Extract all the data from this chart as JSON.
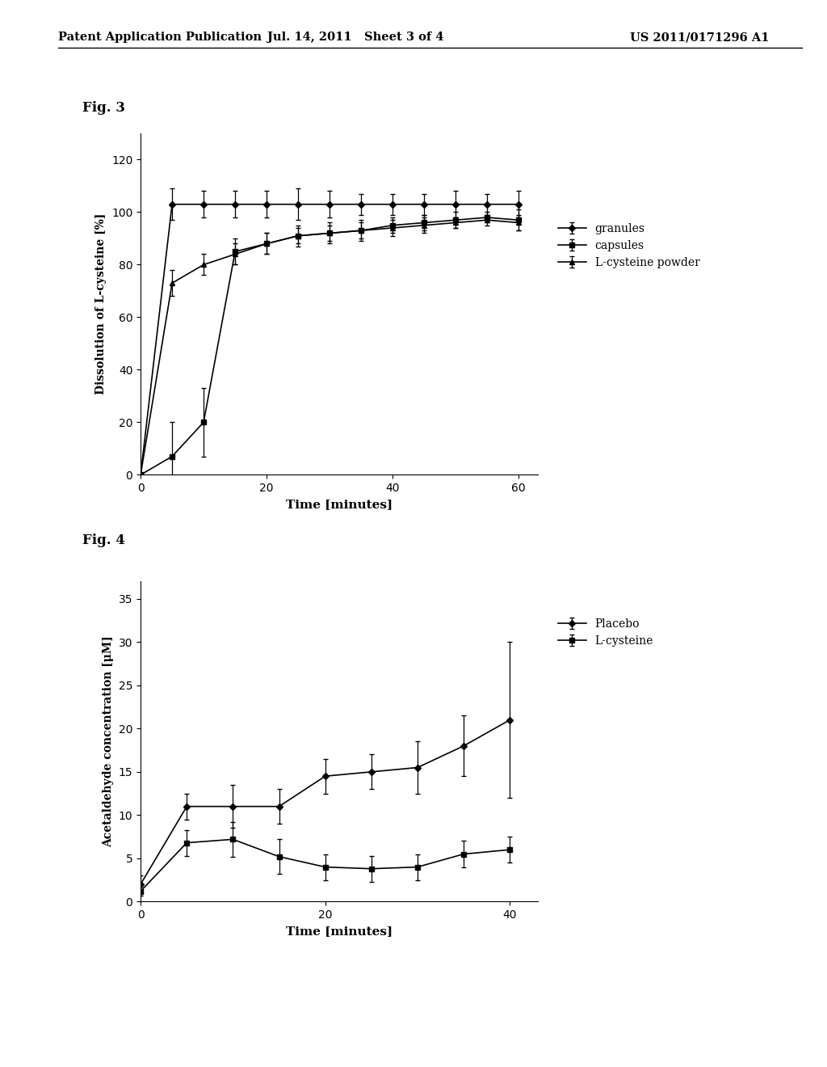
{
  "header_left": "Patent Application Publication",
  "header_mid": "Jul. 14, 2011   Sheet 3 of 4",
  "header_right": "US 2011/0171296 A1",
  "fig3": {
    "title": "Fig. 3",
    "xlabel": "Time [minutes]",
    "ylabel": "Dissolution of L-cysteine [%]",
    "xlim": [
      0,
      63
    ],
    "ylim": [
      0,
      130
    ],
    "xticks": [
      0,
      20,
      40,
      60
    ],
    "yticks": [
      0,
      20,
      40,
      60,
      80,
      100,
      120
    ],
    "granules": {
      "x": [
        0,
        5,
        10,
        15,
        20,
        25,
        30,
        35,
        40,
        45,
        50,
        55,
        60
      ],
      "y": [
        0,
        103,
        103,
        103,
        103,
        103,
        103,
        103,
        103,
        103,
        103,
        103,
        103
      ],
      "yerr": [
        0,
        6,
        5,
        5,
        5,
        6,
        5,
        4,
        4,
        4,
        5,
        4,
        5
      ],
      "label": "granules",
      "marker": "D",
      "color": "#000000"
    },
    "capsules": {
      "x": [
        0,
        5,
        10,
        15,
        20,
        25,
        30,
        35,
        40,
        45,
        50,
        55,
        60
      ],
      "y": [
        0,
        7,
        20,
        85,
        88,
        91,
        92,
        93,
        95,
        96,
        97,
        98,
        97
      ],
      "yerr": [
        0,
        13,
        13,
        5,
        4,
        4,
        4,
        4,
        3,
        3,
        3,
        2,
        4
      ],
      "label": "capsules",
      "marker": "s",
      "color": "#000000"
    },
    "powder": {
      "x": [
        0,
        5,
        10,
        15,
        20,
        25,
        30,
        35,
        40,
        45,
        50,
        55,
        60
      ],
      "y": [
        0,
        73,
        80,
        84,
        88,
        91,
        92,
        93,
        94,
        95,
        96,
        97,
        96
      ],
      "yerr": [
        0,
        5,
        4,
        4,
        4,
        3,
        3,
        3,
        3,
        3,
        2,
        2,
        3
      ],
      "label": "L-cysteine powder",
      "marker": "^",
      "color": "#000000"
    }
  },
  "fig4": {
    "title": "Fig. 4",
    "xlabel": "Time [minutes]",
    "ylabel": "Acetaldehyde concentration [μM]",
    "xlim": [
      0,
      43
    ],
    "ylim": [
      0,
      37
    ],
    "xticks": [
      0,
      20,
      40
    ],
    "yticks": [
      0,
      5,
      10,
      15,
      20,
      25,
      30,
      35
    ],
    "placebo": {
      "x": [
        0,
        5,
        10,
        15,
        20,
        25,
        30,
        35,
        40
      ],
      "y": [
        2.0,
        11.0,
        11.0,
        11.0,
        14.5,
        15.0,
        15.5,
        18.0,
        21.0
      ],
      "yerr": [
        1.0,
        1.5,
        2.5,
        2.0,
        2.0,
        2.0,
        3.0,
        3.5,
        9.0
      ],
      "label": "Placebo",
      "marker": "D",
      "color": "#000000"
    },
    "lcysteine": {
      "x": [
        0,
        5,
        10,
        15,
        20,
        25,
        30,
        35,
        40
      ],
      "y": [
        1.2,
        6.8,
        7.2,
        5.2,
        4.0,
        3.8,
        4.0,
        5.5,
        6.0
      ],
      "yerr": [
        0.5,
        1.5,
        2.0,
        2.0,
        1.5,
        1.5,
        1.5,
        1.5,
        1.5
      ],
      "label": "L-cysteine",
      "marker": "s",
      "color": "#000000"
    }
  },
  "background_color": "#ffffff",
  "text_color": "#000000"
}
